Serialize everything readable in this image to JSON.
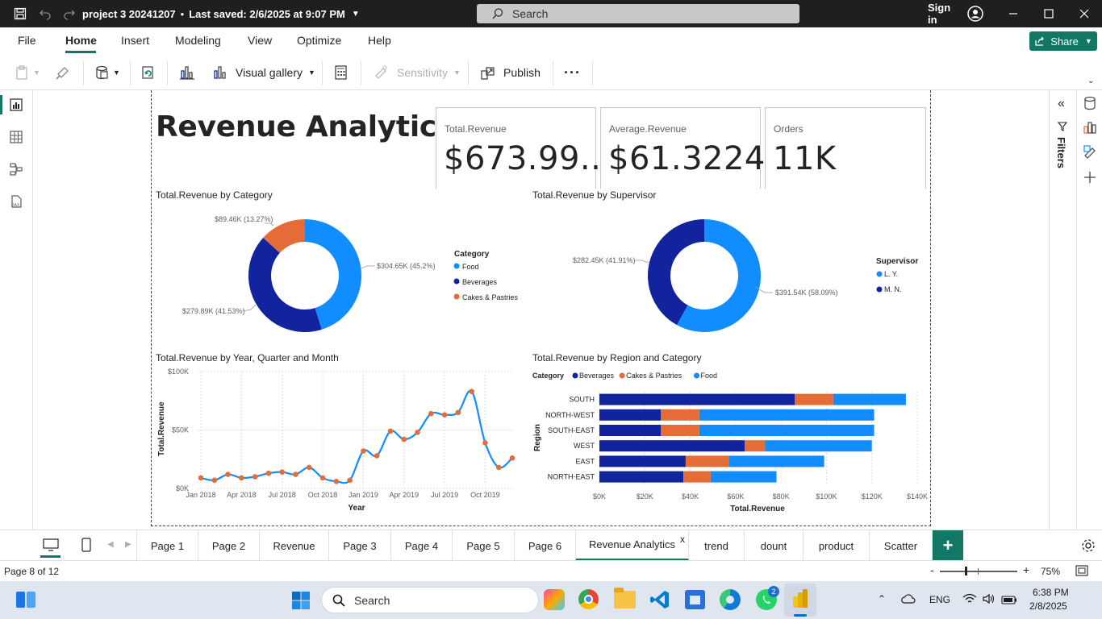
{
  "titlebar": {
    "file_name": "project 3 20241207",
    "separator": "•",
    "saved": "Last saved: 2/6/2025 at 9:07 PM",
    "search_label": "Search",
    "sign_in": "Sign in"
  },
  "menu": {
    "items": [
      "File",
      "Home",
      "Insert",
      "Modeling",
      "View",
      "Optimize",
      "Help"
    ],
    "share_label": "Share"
  },
  "ribbon": {
    "visual_gallery": "Visual gallery",
    "sensitivity": "Sensitivity",
    "publish": "Publish",
    "more": "···"
  },
  "report": {
    "title": "Revenue Analytics",
    "kpis": [
      {
        "label": "Total.Revenue",
        "value": "$673.99..."
      },
      {
        "label": "Average.Revenue",
        "value": "$61.3224"
      },
      {
        "label": "Orders",
        "value": "11K"
      }
    ]
  },
  "chart_data": [
    {
      "type": "pie",
      "title": "Total.Revenue by Category",
      "legend_title": "Category",
      "categories": [
        "Food",
        "Beverages",
        "Cakes & Pastries"
      ],
      "values": [
        304.65,
        279.89,
        89.46
      ],
      "labels": [
        "$304.65K (45.2%)",
        "$279.89K (41.53%)",
        "$89.46K (13.27%)"
      ],
      "colors": [
        "#118dff",
        "#12239e",
        "#e66c37"
      ],
      "legend_position": "right"
    },
    {
      "type": "pie",
      "title": "Total.Revenue by Supervisor",
      "legend_title": "Supervisor",
      "categories": [
        "L. Y.",
        "M. N."
      ],
      "values": [
        391.54,
        282.45
      ],
      "labels": [
        "$391.54K (58.09%)",
        "$282.45K (41.91%)"
      ],
      "colors": [
        "#118dff",
        "#12239e"
      ],
      "legend_position": "right"
    },
    {
      "type": "line",
      "title": "Total.Revenue by Year, Quarter and Month",
      "xlabel": "Year",
      "ylabel": "Total.Revenue",
      "y_ticks": [
        "$0K",
        "$50K",
        "$100K"
      ],
      "x_ticks": [
        "Jan 2018",
        "Apr 2018",
        "Jul 2018",
        "Oct 2018",
        "Jan 2019",
        "Apr 2019",
        "Jul 2019",
        "Oct 2019"
      ],
      "ylim": [
        0,
        100
      ],
      "x": [
        "2018-01",
        "2018-02",
        "2018-03",
        "2018-04",
        "2018-05",
        "2018-06",
        "2018-07",
        "2018-08",
        "2018-09",
        "2018-10",
        "2018-11",
        "2018-12",
        "2019-01",
        "2019-02",
        "2019-03",
        "2019-04",
        "2019-05",
        "2019-06",
        "2019-07",
        "2019-08",
        "2019-09",
        "2019-10",
        "2019-11",
        "2019-12"
      ],
      "values": [
        9,
        7,
        12,
        9,
        10,
        13,
        14,
        12,
        18,
        9,
        6,
        7,
        32,
        28,
        49,
        42,
        48,
        64,
        63,
        65,
        83,
        39,
        18,
        26
      ],
      "color": "#118dff",
      "marker_color": "#e66c37",
      "grid": true
    },
    {
      "type": "bar",
      "orientation": "horizontal",
      "stacked": true,
      "title": "Total.Revenue by Region and Category",
      "legend_title": "Category",
      "legend_position": "top-left",
      "ylabel": "Region",
      "xlabel": "Total.Revenue",
      "categories": [
        "SOUTH",
        "NORTH-WEST",
        "SOUTH-EAST",
        "WEST",
        "EAST",
        "NORTH-EAST"
      ],
      "x_ticks": [
        "$0K",
        "$20K",
        "$40K",
        "$60K",
        "$80K",
        "$100K",
        "$120K",
        "$140K"
      ],
      "xlim": [
        0,
        140
      ],
      "series": [
        {
          "name": "Beverages",
          "color": "#12239e",
          "values": [
            86,
            27,
            27,
            64,
            38,
            37
          ]
        },
        {
          "name": "Cakes & Pastries",
          "color": "#e66c37",
          "values": [
            17,
            17,
            17,
            9,
            19,
            12
          ]
        },
        {
          "name": "Food",
          "color": "#118dff",
          "values": [
            32,
            77,
            77,
            47,
            42,
            29
          ]
        }
      ]
    }
  ],
  "filters_label": "Filters",
  "tabs": [
    "Page 1",
    "Page 2",
    "Revenue",
    "Page 3",
    "Page 4",
    "Page 5",
    "Page 6",
    "Revenue Analytics",
    "trend",
    "dount",
    "product",
    "Scatter"
  ],
  "active_tab": "Revenue Analytics",
  "tab_close": "x",
  "add_tab": "+",
  "status": {
    "page_info": "Page 8 of 12",
    "zoom": "75%",
    "zoom_minus": "-",
    "zoom_plus": "+"
  },
  "taskbar": {
    "search_label": "Search",
    "lang": "ENG",
    "time": "6:38 PM",
    "date": "2/8/2025",
    "whatsapp_badge": "2"
  }
}
